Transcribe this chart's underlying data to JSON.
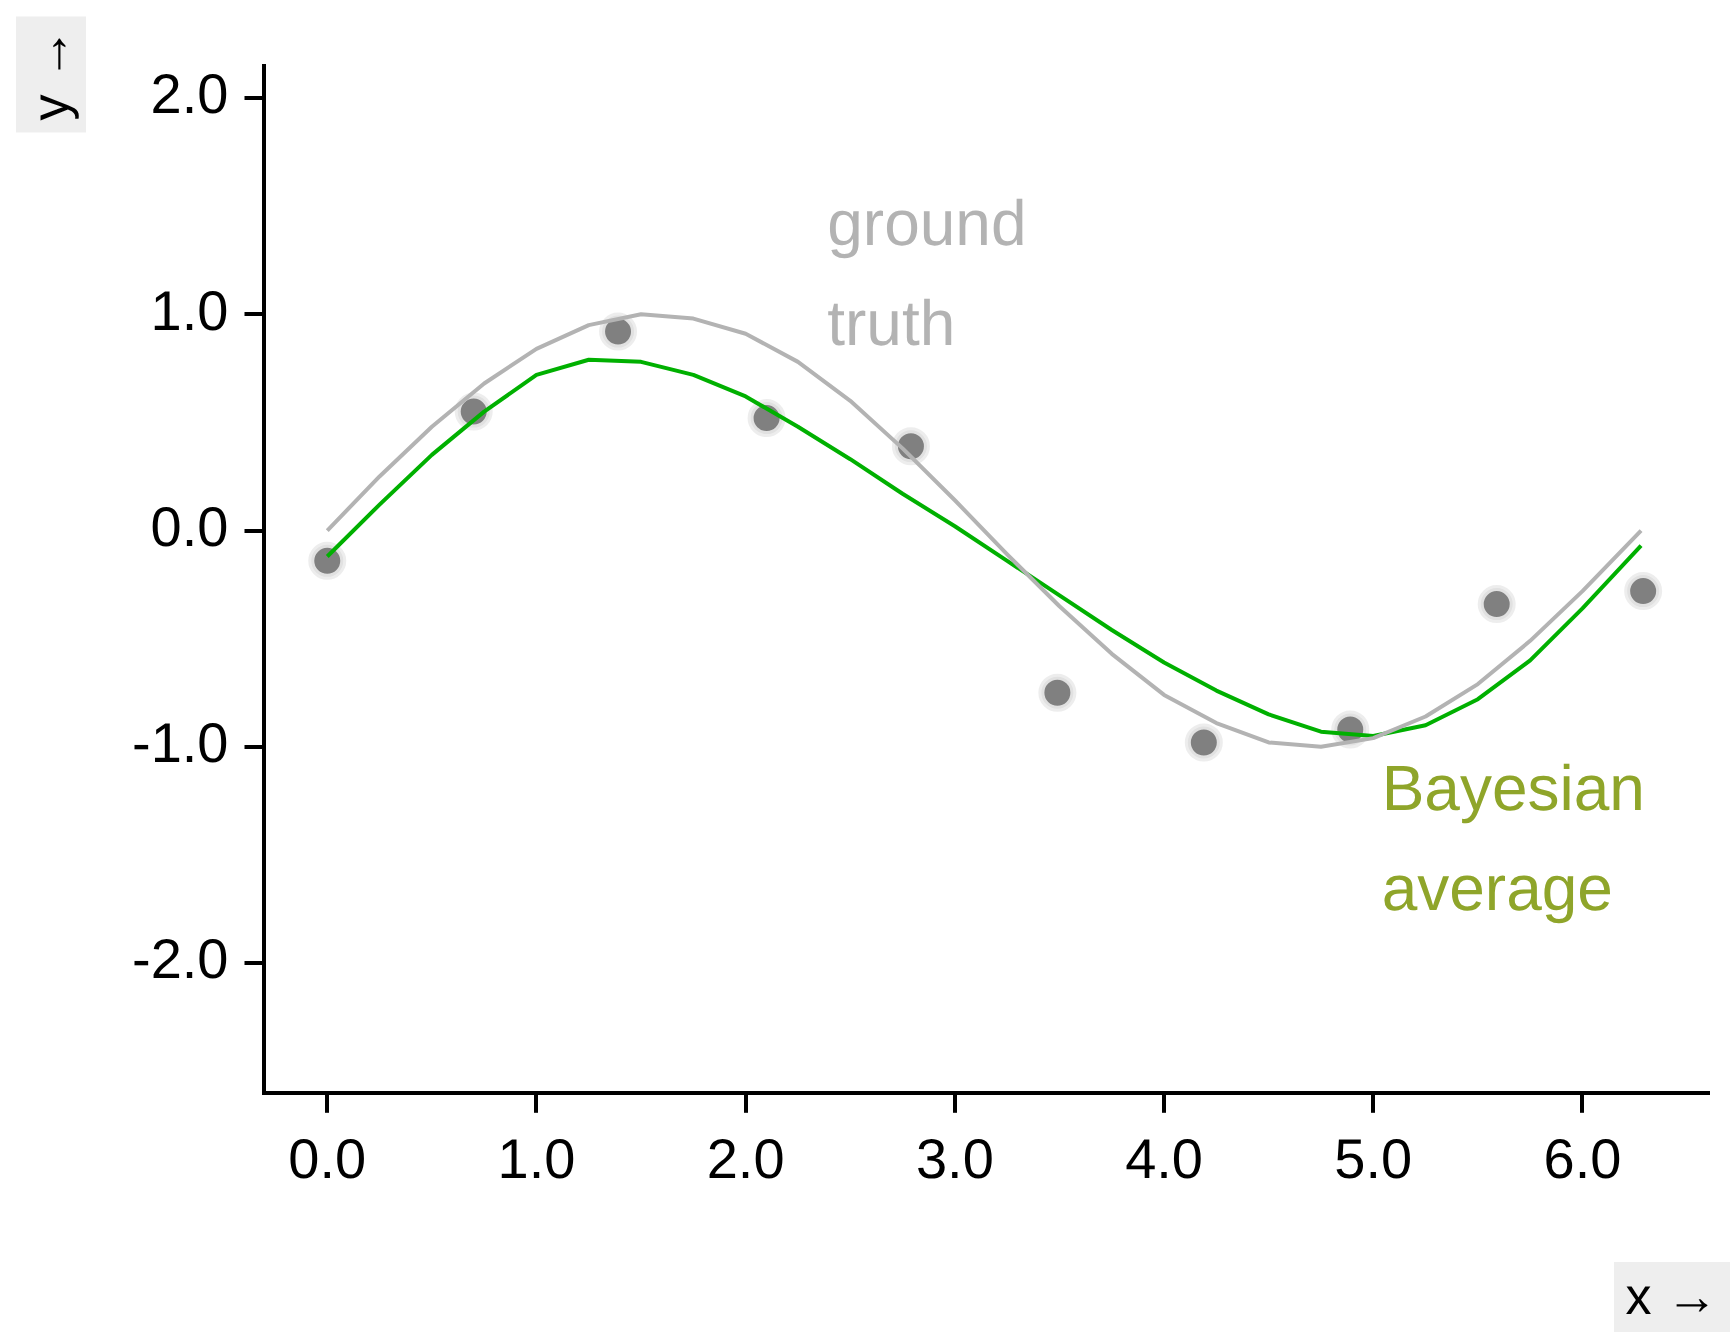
{
  "chart_data": {
    "type": "line",
    "xlabel": "x →",
    "ylabel": "y →",
    "xlim": [
      -0.3,
      6.6
    ],
    "ylim": [
      -2.6,
      2.15
    ],
    "xticks": [
      {
        "value": 0,
        "label": "0.0"
      },
      {
        "value": 1,
        "label": "1.0"
      },
      {
        "value": 2,
        "label": "2.0"
      },
      {
        "value": 3,
        "label": "3.0"
      },
      {
        "value": 4,
        "label": "4.0"
      },
      {
        "value": 5,
        "label": "5.0"
      },
      {
        "value": 6,
        "label": "6.0"
      }
    ],
    "yticks": [
      {
        "value": -2,
        "label": "-2.0"
      },
      {
        "value": -1,
        "label": "-1.0"
      },
      {
        "value": 0,
        "label": "0.0"
      },
      {
        "value": 1,
        "label": "1.0"
      },
      {
        "value": 2,
        "label": "2.0"
      }
    ],
    "grid": false,
    "legend": false,
    "series": [
      {
        "name": "ground truth",
        "color": "#b3b3b3",
        "x": [
          0,
          0.25,
          0.5,
          0.75,
          1,
          1.25,
          1.5,
          1.75,
          2,
          2.25,
          2.5,
          2.75,
          3,
          3.25,
          3.5,
          3.75,
          4,
          4.25,
          4.5,
          4.75,
          5,
          5.25,
          5.5,
          5.75,
          6,
          6.28
        ],
        "values": [
          0,
          0.25,
          0.48,
          0.68,
          0.84,
          0.95,
          1.0,
          0.98,
          0.91,
          0.78,
          0.6,
          0.38,
          0.14,
          -0.11,
          -0.35,
          -0.57,
          -0.76,
          -0.89,
          -0.98,
          -1.0,
          -0.96,
          -0.86,
          -0.71,
          -0.51,
          -0.28,
          0
        ]
      },
      {
        "name": "Bayesian average",
        "color": "#00b000",
        "x": [
          0,
          0.25,
          0.5,
          0.75,
          1,
          1.25,
          1.5,
          1.75,
          2,
          2.25,
          2.5,
          2.75,
          3,
          3.25,
          3.5,
          3.75,
          4,
          4.25,
          4.5,
          4.75,
          5,
          5.25,
          5.5,
          5.75,
          6,
          6.28
        ],
        "values": [
          -0.12,
          0.12,
          0.35,
          0.55,
          0.72,
          0.79,
          0.78,
          0.72,
          0.62,
          0.48,
          0.33,
          0.17,
          0.02,
          -0.14,
          -0.3,
          -0.46,
          -0.61,
          -0.74,
          -0.85,
          -0.93,
          -0.95,
          -0.9,
          -0.78,
          -0.6,
          -0.36,
          -0.07
        ]
      },
      {
        "type": "scatter",
        "color": "#808080",
        "marker": "circle",
        "x": [
          0,
          0.7,
          1.39,
          2.1,
          2.79,
          3.49,
          4.19,
          4.89,
          5.59,
          6.29
        ],
        "values": [
          -0.14,
          0.55,
          0.92,
          0.52,
          0.39,
          -0.75,
          -0.98,
          -0.92,
          -0.34,
          -0.28
        ]
      }
    ]
  }
}
